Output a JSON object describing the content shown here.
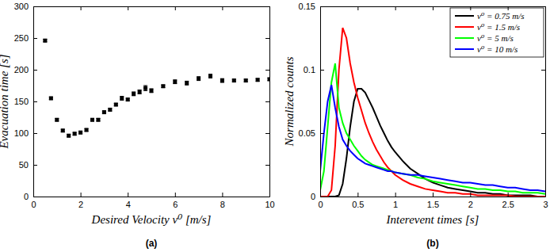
{
  "chart_data": [
    {
      "type": "scatter",
      "title": "(a)",
      "x_label": "Desired Velocity v⁰ [m/s]",
      "y_label": "Evacuation time [s]",
      "x": [
        0.5,
        0.75,
        1.0,
        1.25,
        1.5,
        1.75,
        2.0,
        2.25,
        2.5,
        2.75,
        3.0,
        3.25,
        3.5,
        3.75,
        4.0,
        4.25,
        4.5,
        4.75,
        5.0,
        5.5,
        6.0,
        6.5,
        7.0,
        7.5,
        8.0,
        8.5,
        9.0,
        9.5,
        10.0
      ],
      "values": [
        246,
        155,
        121,
        104,
        96,
        99,
        101,
        105,
        121,
        121,
        133,
        137,
        145,
        155,
        153,
        162,
        165,
        171,
        167,
        174,
        181,
        179,
        186,
        190,
        183,
        183,
        183,
        184,
        185
      ],
      "errors": [
        2,
        2,
        2,
        2,
        2,
        2,
        2,
        2,
        2,
        2,
        2,
        2,
        2,
        3,
        2,
        3,
        3,
        4,
        3,
        2,
        3,
        3,
        3,
        3,
        3,
        2,
        2,
        2,
        2
      ],
      "color": "#000000",
      "marker": "square",
      "xlim": [
        0,
        10
      ],
      "xticks": [
        0,
        2,
        4,
        6,
        8,
        10
      ],
      "ylim": [
        0,
        300
      ],
      "yticks": [
        0,
        50,
        100,
        150,
        200,
        250,
        300
      ]
    },
    {
      "type": "line",
      "title": "(b)",
      "x_label": "Interevent times [s]",
      "y_label": "Normalized counts",
      "x": [
        0,
        0.05,
        0.1,
        0.15,
        0.2,
        0.25,
        0.3,
        0.35,
        0.4,
        0.45,
        0.5,
        0.55,
        0.6,
        0.65,
        0.7,
        0.75,
        0.8,
        0.85,
        0.9,
        0.95,
        1.0,
        1.1,
        1.2,
        1.3,
        1.4,
        1.5,
        1.6,
        1.7,
        1.8,
        1.9,
        2.0,
        2.1,
        2.2,
        2.3,
        2.4,
        2.5,
        2.6,
        2.7,
        2.8,
        2.9,
        3.0
      ],
      "series": [
        {
          "name": "v⁰ = 0.75 m/s",
          "color": "#000000",
          "values": [
            0,
            0,
            0,
            0,
            0,
            0.001,
            0.01,
            0.03,
            0.055,
            0.075,
            0.085,
            0.085,
            0.082,
            0.076,
            0.07,
            0.063,
            0.056,
            0.05,
            0.044,
            0.039,
            0.035,
            0.028,
            0.022,
            0.018,
            0.014,
            0.011,
            0.009,
            0.007,
            0.006,
            0.005,
            0.004,
            0.003,
            0.003,
            0.002,
            0.002,
            0.001,
            0.001,
            0.001,
            0.001,
            0,
            0
          ]
        },
        {
          "name": "v⁰ = 1.5 m/s",
          "color": "#ff0000",
          "values": [
            0,
            0,
            0,
            0.005,
            0.04,
            0.1,
            0.133,
            0.125,
            0.105,
            0.09,
            0.078,
            0.068,
            0.058,
            0.05,
            0.043,
            0.037,
            0.032,
            0.027,
            0.023,
            0.02,
            0.017,
            0.013,
            0.01,
            0.008,
            0.006,
            0.005,
            0.004,
            0.003,
            0.003,
            0.002,
            0.002,
            0.001,
            0.001,
            0.001,
            0.001,
            0.001,
            0,
            0,
            0,
            0,
            0
          ]
        },
        {
          "name": "v⁰ = 5 m/s",
          "color": "#00ff00",
          "values": [
            0.005,
            0.02,
            0.055,
            0.09,
            0.105,
            0.07,
            0.058,
            0.05,
            0.045,
            0.04,
            0.036,
            0.032,
            0.029,
            0.027,
            0.025,
            0.024,
            0.023,
            0.022,
            0.021,
            0.02,
            0.019,
            0.018,
            0.017,
            0.015,
            0.014,
            0.012,
            0.011,
            0.01,
            0.009,
            0.008,
            0.007,
            0.006,
            0.006,
            0.005,
            0.005,
            0.004,
            0.004,
            0.003,
            0.003,
            0.003,
            0.002
          ]
        },
        {
          "name": "v⁰ = 10 m/s",
          "color": "#0000ff",
          "values": [
            0.02,
            0.05,
            0.075,
            0.088,
            0.07,
            0.055,
            0.045,
            0.04,
            0.036,
            0.033,
            0.03,
            0.028,
            0.026,
            0.025,
            0.024,
            0.023,
            0.022,
            0.021,
            0.02,
            0.02,
            0.019,
            0.018,
            0.017,
            0.017,
            0.016,
            0.015,
            0.014,
            0.013,
            0.012,
            0.011,
            0.011,
            0.01,
            0.009,
            0.009,
            0.008,
            0.007,
            0.007,
            0.006,
            0.005,
            0.005,
            0.004
          ]
        }
      ],
      "legend": "upper right",
      "xlim": [
        0,
        3
      ],
      "xticks": [
        0,
        0.5,
        1,
        1.5,
        2,
        2.5,
        3
      ],
      "ylim": [
        0,
        0.15
      ],
      "yticks": [
        0,
        0.05,
        0.1,
        0.15
      ]
    }
  ]
}
